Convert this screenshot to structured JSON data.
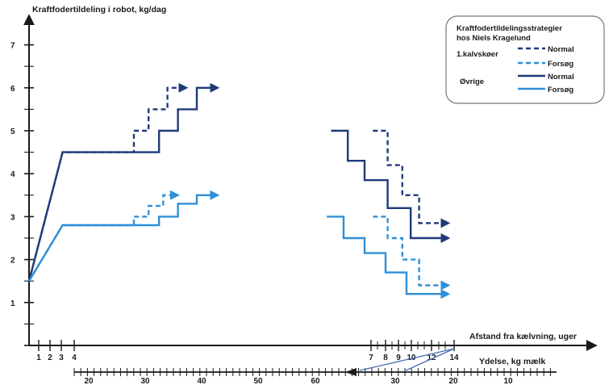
{
  "chart_data": {
    "type": "line",
    "ylabel": "Kraftfodertildeling i robot, kg/dag",
    "xlabel": "Afstand fra kælvning, uger",
    "x2label": "Ydelse, kg mælk",
    "ylim": [
      0,
      7.5
    ],
    "yticks": [
      "1",
      "2",
      "3",
      "4",
      "5",
      "6",
      "7"
    ],
    "xticks_left": [
      "1",
      "2",
      "3",
      "4"
    ],
    "xticks_right": [
      "7",
      "8",
      "9",
      "10",
      "12",
      "14"
    ],
    "yield_ticks_left": [
      "20",
      "30",
      "40",
      "50",
      "60"
    ],
    "yield_ticks_right": [
      "30",
      "20",
      "10"
    ],
    "legend": {
      "title_line1": "Kraftfodertildelingsstrategier",
      "title_line2": "hos  Niels Kragelund",
      "group1": "1.kalvskøer",
      "group2": "Øvrige",
      "normal": "Normal",
      "forsog": "Forsøg"
    },
    "colors": {
      "dark": "#1f3a7a",
      "light": "#2f8fd8",
      "axis": "#1a1a1a"
    },
    "series": [
      {
        "name": "1.kalvskøer Normal",
        "color": "#1f3a7a",
        "dash": true,
        "segments": [
          [
            [
              0,
              1.5
            ],
            [
              0.8,
              4.5
            ],
            [
              2.5,
              4.5
            ],
            [
              2.5,
              5.0
            ],
            [
              2.85,
              5.0
            ],
            [
              2.85,
              5.5
            ],
            [
              3.3,
              5.5
            ],
            [
              3.3,
              6.0
            ],
            [
              3.75,
              6.0
            ]
          ],
          [
            [
              8.2,
              5.0
            ],
            [
              8.55,
              5.0
            ],
            [
              8.55,
              4.2
            ],
            [
              8.9,
              4.2
            ],
            [
              8.9,
              3.5
            ],
            [
              9.3,
              3.5
            ],
            [
              9.3,
              2.85
            ],
            [
              10.0,
              2.85
            ]
          ]
        ],
        "arrow_ends": [
          true,
          true
        ]
      },
      {
        "name": "1.kalvskøer Forsøg",
        "color": "#2f8fd8",
        "dash": true,
        "segments": [
          [
            [
              0,
              1.5
            ],
            [
              0.8,
              2.8
            ],
            [
              2.5,
              2.8
            ],
            [
              2.5,
              3.0
            ],
            [
              2.85,
              3.0
            ],
            [
              2.85,
              3.25
            ],
            [
              3.2,
              3.25
            ],
            [
              3.2,
              3.5
            ],
            [
              3.55,
              3.5
            ]
          ],
          [
            [
              8.2,
              3.0
            ],
            [
              8.55,
              3.0
            ],
            [
              8.55,
              2.5
            ],
            [
              8.9,
              2.5
            ],
            [
              8.9,
              2.0
            ],
            [
              9.3,
              2.0
            ],
            [
              9.3,
              1.4
            ],
            [
              10.0,
              1.4
            ]
          ]
        ],
        "arrow_ends": [
          true,
          true
        ]
      },
      {
        "name": "Øvrige Normal",
        "color": "#1f3a7a",
        "dash": false,
        "segments": [
          [
            [
              0,
              1.5
            ],
            [
              0.8,
              4.5
            ],
            [
              3.1,
              4.5
            ],
            [
              3.1,
              5.0
            ],
            [
              3.55,
              5.0
            ],
            [
              3.55,
              5.5
            ],
            [
              4.0,
              5.5
            ],
            [
              4.0,
              6.0
            ],
            [
              4.5,
              6.0
            ]
          ],
          [
            [
              7.2,
              5.0
            ],
            [
              7.6,
              5.0
            ],
            [
              7.6,
              4.3
            ],
            [
              8.0,
              4.3
            ],
            [
              8.0,
              3.85
            ],
            [
              8.55,
              3.85
            ],
            [
              8.55,
              3.2
            ],
            [
              9.1,
              3.2
            ],
            [
              9.1,
              2.5
            ],
            [
              10.0,
              2.5
            ]
          ]
        ],
        "arrow_ends": [
          true,
          true
        ]
      },
      {
        "name": "Øvrige Forsøg",
        "color": "#2f8fd8",
        "dash": false,
        "segments": [
          [
            [
              0,
              1.5
            ],
            [
              0.8,
              2.8
            ],
            [
              3.1,
              2.8
            ],
            [
              3.1,
              3.0
            ],
            [
              3.55,
              3.0
            ],
            [
              3.55,
              3.3
            ],
            [
              4.0,
              3.3
            ],
            [
              4.0,
              3.5
            ],
            [
              4.5,
              3.5
            ]
          ],
          [
            [
              7.1,
              3.0
            ],
            [
              7.5,
              3.0
            ],
            [
              7.5,
              2.5
            ],
            [
              8.0,
              2.5
            ],
            [
              8.0,
              2.15
            ],
            [
              8.5,
              2.15
            ],
            [
              8.5,
              1.7
            ],
            [
              9.0,
              1.7
            ],
            [
              9.0,
              1.2
            ],
            [
              10.0,
              1.2
            ]
          ]
        ],
        "arrow_ends": [
          true,
          true
        ]
      }
    ]
  }
}
